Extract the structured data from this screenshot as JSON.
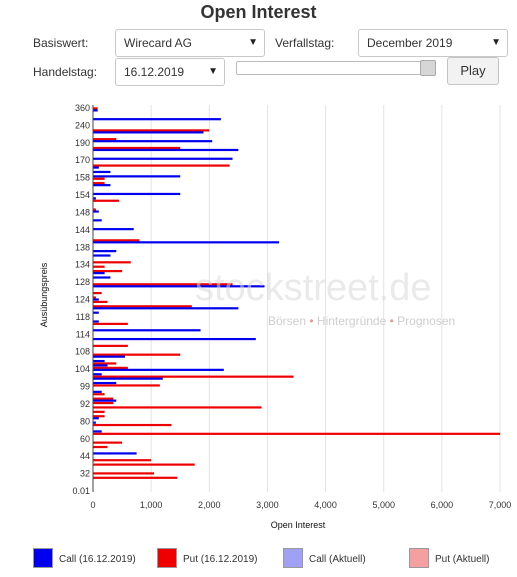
{
  "header": {
    "title": "Open Interest"
  },
  "controls": {
    "basiswert_label": "Basiswert:",
    "basiswert_value": "Wirecard AG",
    "verfallstag_label": "Verfallstag:",
    "verfallstag_value": "December 2019",
    "handelstag_label": "Handelstag:",
    "handelstag_value": "16.12.2019",
    "play_label": "Play",
    "slider_position": 1.0
  },
  "watermark": {
    "brand": "stockstreet.de",
    "tagline_parts": [
      "Börsen",
      "Hintergründe",
      "Prognosen"
    ]
  },
  "legend": [
    {
      "label": "Call (16.12.2019)",
      "color": "#0000ee"
    },
    {
      "label": "Put (16.12.2019)",
      "color": "#ee0000"
    },
    {
      "label": "Call (Aktuell)",
      "color": "#a0a0f4"
    },
    {
      "label": "Put (Aktuell)",
      "color": "#f4a0a0"
    }
  ],
  "chart_data": {
    "type": "bar",
    "orientation": "horizontal",
    "xlabel": "Open Interest",
    "ylabel": "Ausübungspreis",
    "xlim": [
      0,
      7000
    ],
    "xticks": [
      "0",
      "1,000",
      "2,000",
      "3,000",
      "4,000",
      "5,000",
      "6,000",
      "7,000"
    ],
    "ytick_labels": [
      "360",
      "240",
      "190",
      "170",
      "158",
      "154",
      "148",
      "144",
      "138",
      "134",
      "128",
      "124",
      "118",
      "114",
      "108",
      "104",
      "99",
      "92",
      "80",
      "60",
      "44",
      "32",
      "0.01"
    ],
    "grid": true,
    "category_count": 88,
    "call_values": [
      0,
      80,
      0,
      2200,
      0,
      0,
      1900,
      0,
      2050,
      0,
      2500,
      0,
      2400,
      0,
      100,
      300,
      1500,
      0,
      300,
      0,
      1500,
      50,
      0,
      0,
      100,
      0,
      150,
      0,
      700,
      0,
      0,
      3200,
      0,
      400,
      300,
      0,
      0,
      0,
      200,
      300,
      0,
      2950,
      0,
      0,
      100,
      0,
      2500,
      100,
      0,
      100,
      0,
      1850,
      0,
      2800,
      0,
      0,
      0,
      550,
      200,
      250,
      2250,
      150,
      1200,
      400,
      0,
      150,
      0,
      400,
      0,
      0,
      0,
      100,
      50,
      0,
      150,
      0,
      0,
      0,
      0,
      750,
      0,
      0,
      0,
      0,
      0,
      0,
      0,
      0
    ],
    "put_values": [
      80,
      0,
      0,
      0,
      0,
      2000,
      0,
      400,
      0,
      1500,
      0,
      0,
      0,
      2350,
      0,
      0,
      200,
      200,
      0,
      0,
      0,
      450,
      0,
      50,
      0,
      0,
      0,
      0,
      0,
      0,
      800,
      0,
      0,
      0,
      0,
      650,
      200,
      500,
      0,
      0,
      2400,
      0,
      150,
      50,
      250,
      1700,
      0,
      0,
      0,
      600,
      0,
      0,
      0,
      0,
      600,
      0,
      1500,
      0,
      400,
      600,
      0,
      3450,
      0,
      1150,
      0,
      200,
      350,
      350,
      2900,
      200,
      200,
      0,
      1350,
      0,
      7000,
      0,
      500,
      250,
      0,
      0,
      1000,
      1750,
      0,
      1050,
      1450,
      0,
      0,
      0
    ]
  }
}
